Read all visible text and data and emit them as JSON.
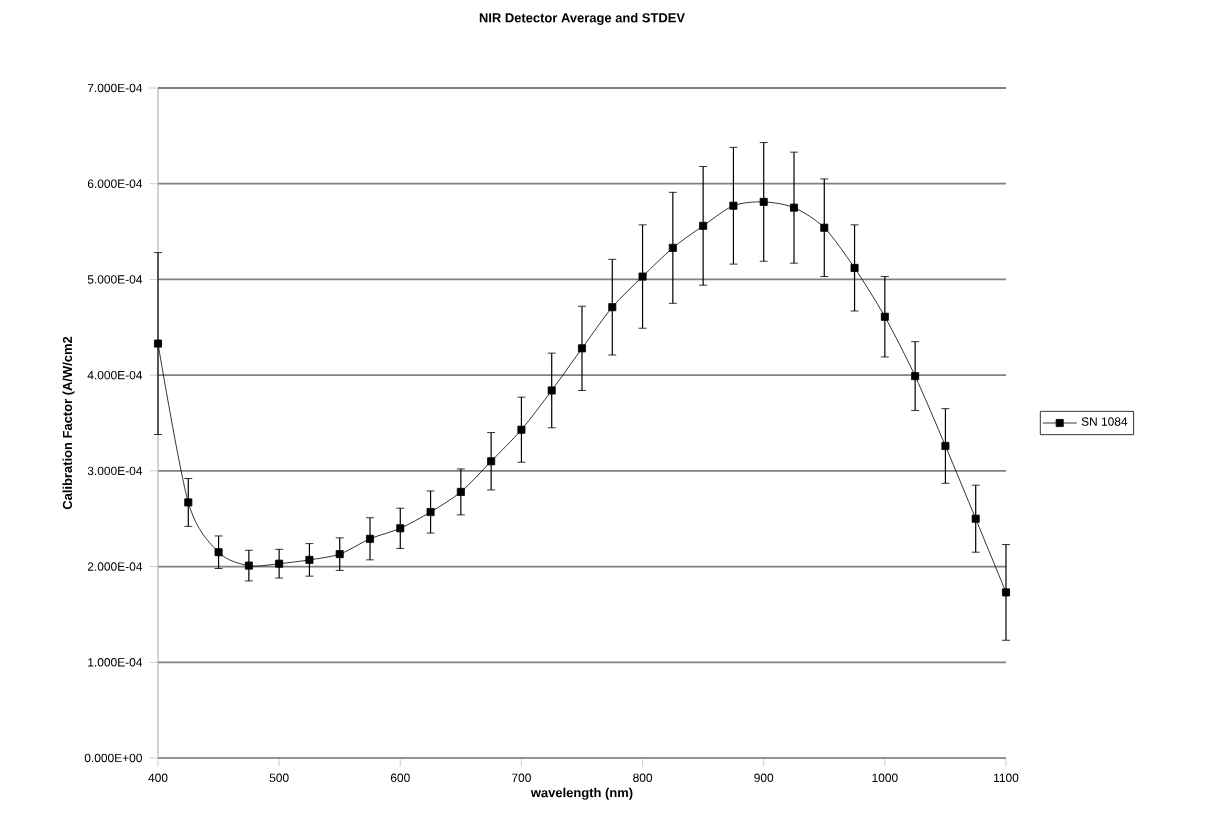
{
  "chart_data": {
    "type": "line",
    "title": "NIR Detector Average and STDEV",
    "xlabel": "wavelength (nm)",
    "ylabel": "Calibration Factor  (A/W/cm2",
    "x": [
      400,
      425,
      450,
      475,
      500,
      525,
      550,
      575,
      600,
      625,
      650,
      675,
      700,
      725,
      750,
      775,
      800,
      825,
      850,
      875,
      900,
      925,
      950,
      975,
      1000,
      1025,
      1050,
      1075,
      1100
    ],
    "series": [
      {
        "name": "SN 1084",
        "color": "#000000",
        "values": [
          0.000433,
          0.000267,
          0.000215,
          0.000201,
          0.000203,
          0.000207,
          0.000213,
          0.000229,
          0.00024,
          0.000257,
          0.000278,
          0.00031,
          0.000343,
          0.000384,
          0.000428,
          0.000471,
          0.000503,
          0.000533,
          0.000556,
          0.000577,
          0.000581,
          0.000575,
          0.000554,
          0.000512,
          0.000461,
          0.000399,
          0.000326,
          0.00025,
          0.000173
        ],
        "errors": [
          9.5e-05,
          2.5e-05,
          1.7e-05,
          1.6e-05,
          1.5e-05,
          1.7e-05,
          1.7e-05,
          2.2e-05,
          2.1e-05,
          2.2e-05,
          2.4e-05,
          3e-05,
          3.4e-05,
          3.9e-05,
          4.4e-05,
          5e-05,
          5.4e-05,
          5.8e-05,
          6.2e-05,
          6.1e-05,
          6.2e-05,
          5.8e-05,
          5.1e-05,
          4.5e-05,
          4.2e-05,
          3.6e-05,
          3.9e-05,
          3.5e-05,
          5e-05
        ]
      }
    ],
    "xlim": [
      400,
      1100
    ],
    "xticks": [
      400,
      500,
      600,
      700,
      800,
      900,
      1000,
      1100
    ],
    "ylim": [
      0,
      0.0007
    ],
    "yticks": [
      {
        "value": 0,
        "label": "0.000E+00"
      },
      {
        "value": 0.0001,
        "label": "1.000E-04"
      },
      {
        "value": 0.0002,
        "label": "2.000E-04"
      },
      {
        "value": 0.0003,
        "label": "3.000E-04"
      },
      {
        "value": 0.0004,
        "label": "4.000E-04"
      },
      {
        "value": 0.0005,
        "label": "5.000E-04"
      },
      {
        "value": 0.0006,
        "label": "6.000E-04"
      },
      {
        "value": 0.0007,
        "label": "7.000E-04"
      }
    ],
    "grid": "y",
    "legend": "right",
    "marker": "square",
    "line_style": "solid"
  }
}
